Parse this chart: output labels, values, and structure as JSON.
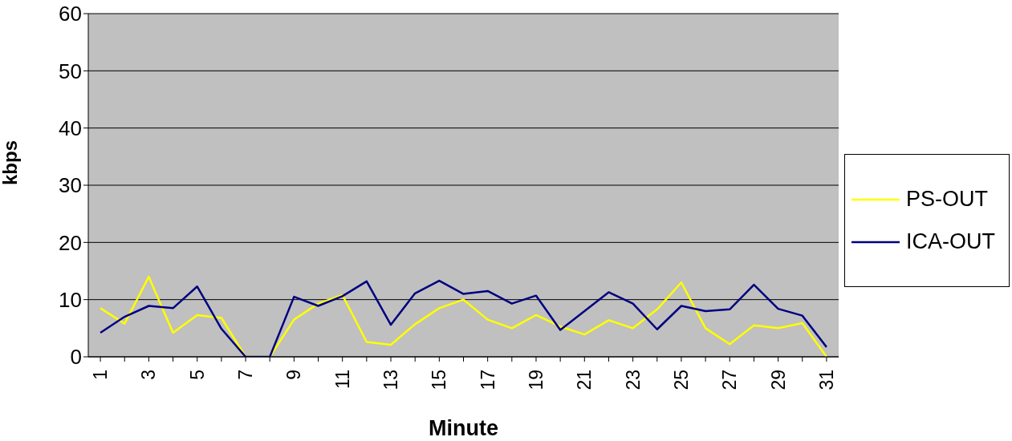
{
  "chart_data": {
    "type": "line",
    "xlabel": "Minute",
    "ylabel": "kbps",
    "categories": [
      "1",
      null,
      "3",
      null,
      "5",
      null,
      "7",
      null,
      "9",
      null,
      "11",
      null,
      "13",
      null,
      "15",
      null,
      "17",
      null,
      "19",
      null,
      "21",
      null,
      "23",
      null,
      "25",
      null,
      "27",
      null,
      "29",
      null,
      "31"
    ],
    "series": [
      {
        "name": "PS-OUT",
        "color": "#ffff00",
        "values": [
          8.5,
          5.8,
          14,
          4.2,
          7.3,
          6.8,
          0,
          0,
          6.5,
          9.3,
          10.8,
          2.6,
          2.1,
          5.7,
          8.5,
          10,
          6.5,
          5,
          7.3,
          5.3,
          3.9,
          6.4,
          5,
          8.3,
          13,
          5,
          2.2,
          5.5,
          5,
          5.9,
          0
        ]
      },
      {
        "name": "ICA-OUT",
        "color": "#000080",
        "values": [
          4.2,
          7,
          8.9,
          8.5,
          12.3,
          4.9,
          0,
          0,
          10.5,
          8.9,
          10.6,
          13.2,
          5.6,
          11.1,
          13.3,
          11,
          11.5,
          9.3,
          10.7,
          4.7,
          8,
          11.3,
          9.3,
          4.8,
          8.9,
          8,
          8.3,
          12.6,
          8.4,
          7.2,
          1.7
        ]
      }
    ],
    "ylim": [
      0,
      60
    ],
    "yticks": [
      0,
      10,
      20,
      30,
      40,
      50,
      60
    ],
    "grid": "y",
    "legend": "right",
    "marker": "none",
    "line_style": "solid"
  }
}
